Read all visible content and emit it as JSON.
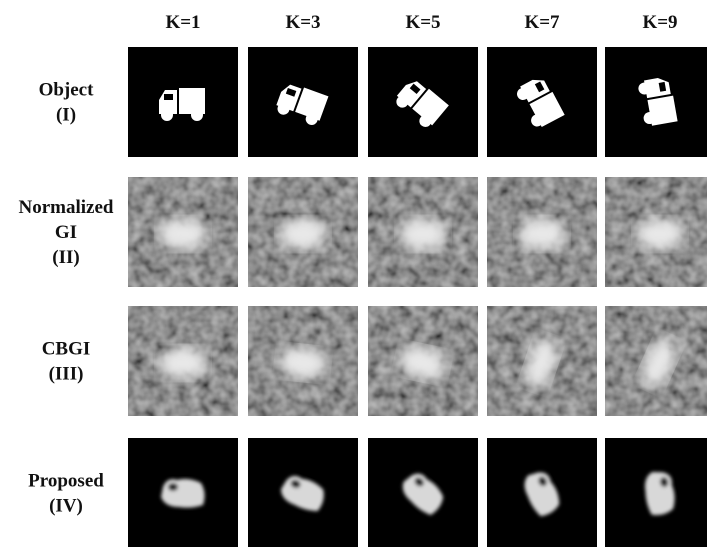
{
  "columns": [
    "K=1",
    "K=3",
    "K=5",
    "K=7",
    "K=9"
  ],
  "rows": [
    {
      "label": [
        "Object",
        "(I)"
      ]
    },
    {
      "label": [
        "Normalized",
        "GI",
        "(II)"
      ]
    },
    {
      "label": [
        "CBGI",
        "(III)"
      ]
    },
    {
      "label": [
        "Proposed",
        "(IV)"
      ]
    }
  ]
}
